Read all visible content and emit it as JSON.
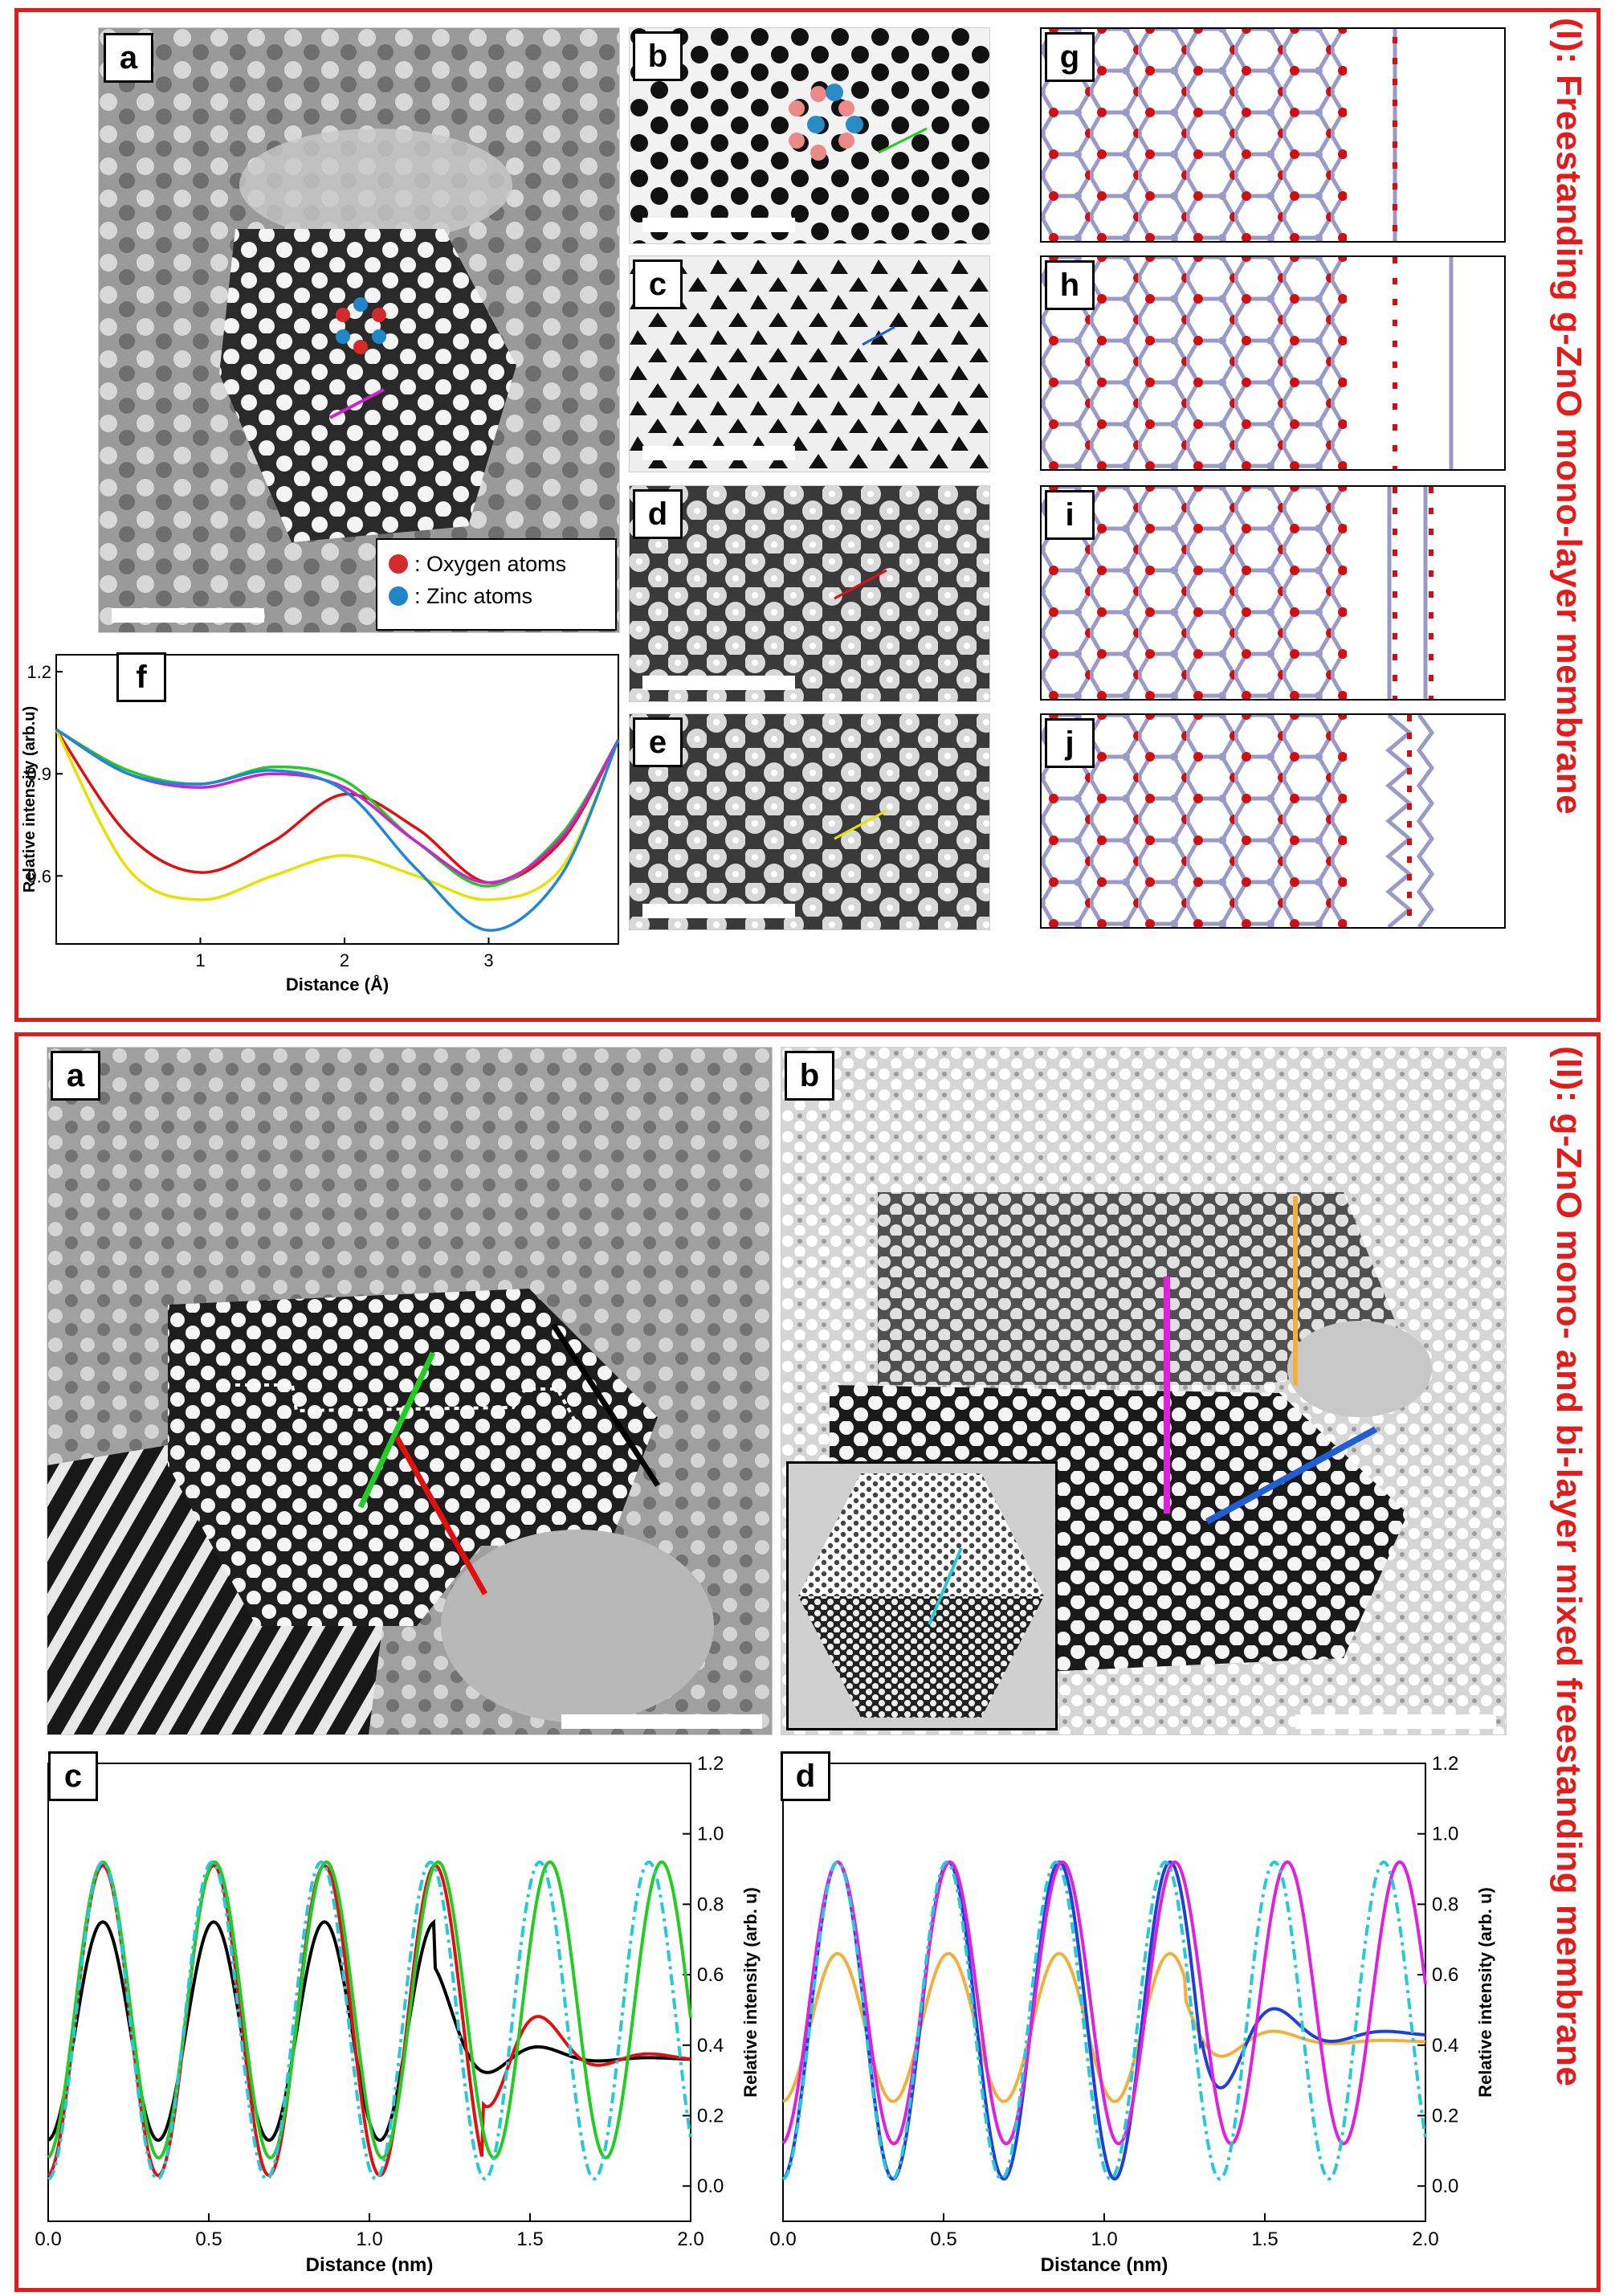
{
  "figure": {
    "section1_title": "(I): Freestanding g-ZnO mono-layer membrane",
    "section2_title": "(II): g-ZnO mono- and bi-layer mixed freestanding membrane"
  },
  "section1": {
    "panels": [
      "a",
      "b",
      "c",
      "d",
      "e",
      "f",
      "g",
      "h",
      "i",
      "j"
    ],
    "legend": [
      {
        "label": ": Oxygen atoms",
        "color": "#d62a2a"
      },
      {
        "label": ": Zinc atoms",
        "color": "#1f86c8"
      }
    ],
    "line_colors": {
      "a": "#d020d0",
      "b": "#22cc22",
      "c": "#1f5fd6",
      "d": "#e01010",
      "e": "#e8e000"
    }
  },
  "section2": {
    "panels": [
      "a",
      "b",
      "c",
      "d"
    ],
    "line_colors": {
      "black": "#000000",
      "green": "#22cc22",
      "red": "#e01010",
      "magenta": "#e020e0",
      "orange": "#f0b040",
      "blue": "#1f5fd6",
      "cyan": "#27c8d8"
    }
  },
  "chart_data": [
    {
      "id": "I-f",
      "type": "line",
      "title": "",
      "xlabel": "Distance (Å)",
      "ylabel": "Relative intensity (arb.u)",
      "xlim": [
        0,
        3.9
      ],
      "ylim": [
        0.4,
        1.25
      ],
      "xticks": [
        1,
        2,
        3
      ],
      "yticks": [
        0.6,
        0.9,
        1.2
      ],
      "ytick_labels": [
        "0.6",
        "0.9",
        "1.2"
      ],
      "x": [
        0,
        0.5,
        1,
        1.5,
        2,
        2.5,
        3,
        3.5,
        3.9
      ],
      "series": [
        {
          "name": "red",
          "color": "#e01010",
          "values": [
            1.03,
            0.72,
            0.61,
            0.7,
            0.84,
            0.74,
            0.58,
            0.7,
            1.0
          ]
        },
        {
          "name": "yellow",
          "color": "#e8e000",
          "values": [
            1.03,
            0.62,
            0.53,
            0.6,
            0.66,
            0.6,
            0.53,
            0.62,
            1.0
          ]
        },
        {
          "name": "green",
          "color": "#22cc22",
          "values": [
            1.03,
            0.91,
            0.87,
            0.92,
            0.88,
            0.7,
            0.57,
            0.72,
            1.0
          ]
        },
        {
          "name": "magenta",
          "color": "#d020d0",
          "values": [
            1.03,
            0.9,
            0.86,
            0.9,
            0.86,
            0.7,
            0.58,
            0.71,
            1.0
          ]
        },
        {
          "name": "blue",
          "color": "#1f86d8",
          "values": [
            1.03,
            0.9,
            0.87,
            0.91,
            0.85,
            0.62,
            0.44,
            0.6,
            1.0
          ]
        }
      ]
    },
    {
      "id": "II-c",
      "type": "line",
      "xlabel": "Distance (nm)",
      "ylabel": "Relative intensity (arb. u)",
      "xlim": [
        0,
        2.0
      ],
      "ylim": [
        -0.1,
        1.2
      ],
      "xticks": [
        0.0,
        0.5,
        1.0,
        1.5,
        2.0
      ],
      "xtick_labels": [
        "0.0",
        "0.5",
        "1.0",
        "1.5",
        "2.0"
      ],
      "yticks": [
        0.0,
        0.2,
        0.4,
        0.6,
        0.8,
        1.0,
        1.2
      ],
      "ytick_labels": [
        "0.0",
        "0.2",
        "0.4",
        "0.6",
        "0.8",
        "1.0",
        "1.2"
      ],
      "series": [
        {
          "name": "black",
          "color": "#000000",
          "period": 0.345,
          "phase": 0.17,
          "amp": 0.31,
          "base": 0.44,
          "decay_start": 1.2,
          "tail": 0.36
        },
        {
          "name": "red",
          "color": "#e01010",
          "period": 0.345,
          "phase": 0.17,
          "amp": 0.44,
          "base": 0.47,
          "decay_start": 1.35,
          "tail": 0.36
        },
        {
          "name": "green",
          "color": "#22cc22",
          "period": 0.348,
          "phase": 0.17,
          "amp": 0.42,
          "base": 0.5,
          "decay_start": 99,
          "tail": 0.4
        },
        {
          "name": "cyan",
          "color": "#27c8d8",
          "period": 0.34,
          "phase": 0.17,
          "amp": 0.45,
          "base": 0.47,
          "decay_start": 99,
          "tail": 0.4,
          "dashed": true
        }
      ]
    },
    {
      "id": "II-d",
      "type": "line",
      "xlabel": "Distance (nm)",
      "ylabel": "Relative intensity (arb. u)",
      "xlim": [
        0,
        2.0
      ],
      "ylim": [
        -0.1,
        1.2
      ],
      "xticks": [
        0.0,
        0.5,
        1.0,
        1.5,
        2.0
      ],
      "xtick_labels": [
        "0.0",
        "0.5",
        "1.0",
        "1.5",
        "2.0"
      ],
      "yticks": [
        0.0,
        0.2,
        0.4,
        0.6,
        0.8,
        1.0,
        1.2
      ],
      "ytick_labels": [
        "0.0",
        "0.2",
        "0.4",
        "0.6",
        "0.8",
        "1.0",
        "1.2"
      ],
      "series": [
        {
          "name": "orange",
          "color": "#f0b040",
          "period": 0.345,
          "phase": 0.17,
          "amp": 0.21,
          "base": 0.45,
          "decay_start": 1.25,
          "tail": 0.41
        },
        {
          "name": "blue",
          "color": "#1f3fd6",
          "period": 0.345,
          "phase": 0.17,
          "amp": 0.45,
          "base": 0.47,
          "decay_start": 1.3,
          "tail": 0.43
        },
        {
          "name": "magenta",
          "color": "#e020e0",
          "period": 0.35,
          "phase": 0.17,
          "amp": 0.4,
          "base": 0.52,
          "decay_start": 99,
          "tail": 0.4
        },
        {
          "name": "cyan",
          "color": "#27c8d8",
          "period": 0.34,
          "phase": 0.17,
          "amp": 0.45,
          "base": 0.47,
          "decay_start": 99,
          "tail": 0.4,
          "dashed": true
        }
      ]
    }
  ]
}
